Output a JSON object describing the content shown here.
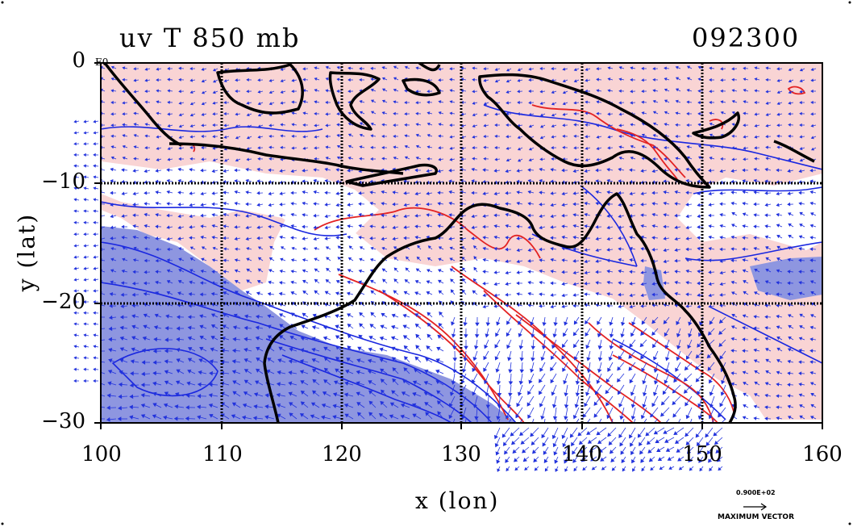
{
  "title": "uv T 850 mb",
  "date_code": "092300",
  "corner_label": "E0",
  "x_axis": {
    "label": "x (lon)",
    "ticks": [
      "100",
      "110",
      "120",
      "130",
      "140",
      "150",
      "160"
    ],
    "range": [
      100,
      160
    ]
  },
  "y_axis": {
    "label": "y (lat)",
    "ticks": [
      "0",
      "−10",
      "−20",
      "−30"
    ],
    "range": [
      -30,
      0
    ]
  },
  "vector_legend": {
    "magnitude": "0.900E+02",
    "label": "MAXIMUM VECTOR"
  },
  "colors": {
    "warm_fill": "#f9d4d4",
    "cool_fill": "#8e96e0",
    "warm_contour": "#e32222",
    "cool_contour": "#1a27e0",
    "vectors": "#2233dd",
    "coast": "#000000"
  },
  "map_layers": [
    "temperature-contours",
    "wind-vectors",
    "coastlines",
    "lat-lon-grid"
  ]
}
